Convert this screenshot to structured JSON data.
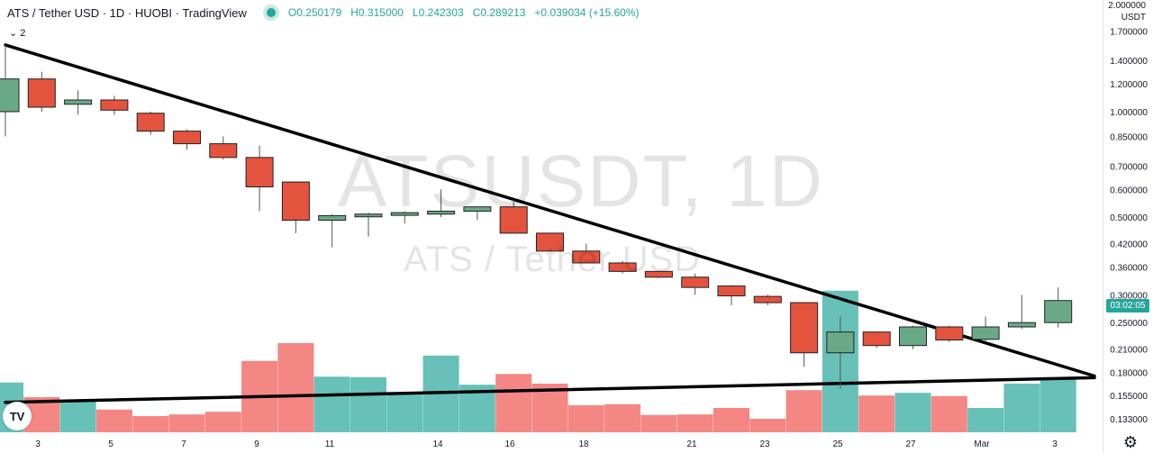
{
  "header": {
    "title": "ATS / Tether USD · 1D · HUOBI · TradingView",
    "open": "O0.250179",
    "high": "H0.315000",
    "low": "L0.242303",
    "close": "C0.289213",
    "change": "+0.039034 (+15.60%)",
    "indicator_count": "2"
  },
  "watermark": {
    "symbol": "ATSUSDT, 1D",
    "name": "ATS / Tether USD"
  },
  "axis": {
    "currency": "USDT",
    "top_label": "2.000000"
  },
  "price_badge": "03:02:05",
  "logo_text": "TV",
  "colors": {
    "up": "#26a69a",
    "down": "#ef5350",
    "up_body": "#6aa987",
    "down_body": "#e4533e",
    "vol_up": "#26a69a",
    "vol_down": "#ef5350",
    "trendline": "#000000"
  },
  "chart_data": {
    "type": "candlestick",
    "scale": "log",
    "ylim": [
      0.125,
      2.0
    ],
    "y_ticks": [
      1.7,
      1.4,
      1.2,
      1.0,
      0.85,
      0.7,
      0.6,
      0.5,
      0.42,
      0.36,
      0.3,
      0.25,
      0.21,
      0.18,
      0.155,
      0.133
    ],
    "x_tick_labels": [
      "3",
      "5",
      "7",
      "9",
      "11",
      "14",
      "16",
      "18",
      "21",
      "23",
      "25",
      "27",
      "Mar",
      "3"
    ],
    "candles": [
      {
        "o": 1.0,
        "h": 1.55,
        "l": 0.85,
        "c": 1.24,
        "v": 0.92
      },
      {
        "o": 1.24,
        "h": 1.3,
        "l": 1.0,
        "c": 1.03,
        "v": 0.65
      },
      {
        "o": 1.05,
        "h": 1.15,
        "l": 0.98,
        "c": 1.08,
        "v": 0.6
      },
      {
        "o": 1.08,
        "h": 1.11,
        "l": 0.98,
        "c": 1.01,
        "v": 0.42
      },
      {
        "o": 0.99,
        "h": 1.0,
        "l": 0.86,
        "c": 0.88,
        "v": 0.3
      },
      {
        "o": 0.88,
        "h": 0.89,
        "l": 0.78,
        "c": 0.81,
        "v": 0.33
      },
      {
        "o": 0.81,
        "h": 0.85,
        "l": 0.73,
        "c": 0.74,
        "v": 0.38
      },
      {
        "o": 0.74,
        "h": 0.8,
        "l": 0.52,
        "c": 0.61,
        "v": 1.32
      },
      {
        "o": 0.63,
        "h": 0.63,
        "l": 0.45,
        "c": 0.49,
        "v": 1.65
      },
      {
        "o": 0.49,
        "h": 0.51,
        "l": 0.41,
        "c": 0.505,
        "v": 1.03
      },
      {
        "o": 0.505,
        "h": 0.515,
        "l": 0.44,
        "c": 0.51,
        "v": 1.02
      },
      {
        "o": 0.51,
        "h": 0.52,
        "l": 0.48,
        "c": 0.515,
        "v": 0.73
      },
      {
        "o": 0.51,
        "h": 0.6,
        "l": 0.5,
        "c": 0.52,
        "v": 1.42
      },
      {
        "o": 0.52,
        "h": 0.535,
        "l": 0.49,
        "c": 0.535,
        "v": 0.88
      },
      {
        "o": 0.535,
        "h": 0.56,
        "l": 0.45,
        "c": 0.45,
        "v": 1.08
      },
      {
        "o": 0.45,
        "h": 0.45,
        "l": 0.4,
        "c": 0.4,
        "v": 0.9
      },
      {
        "o": 0.4,
        "h": 0.42,
        "l": 0.37,
        "c": 0.37,
        "v": 0.5
      },
      {
        "o": 0.37,
        "h": 0.375,
        "l": 0.345,
        "c": 0.35,
        "v": 0.52
      },
      {
        "o": 0.35,
        "h": 0.35,
        "l": 0.335,
        "c": 0.337,
        "v": 0.32
      },
      {
        "o": 0.337,
        "h": 0.345,
        "l": 0.3,
        "c": 0.315,
        "v": 0.33
      },
      {
        "o": 0.318,
        "h": 0.32,
        "l": 0.28,
        "c": 0.298,
        "v": 0.45
      },
      {
        "o": 0.297,
        "h": 0.3,
        "l": 0.28,
        "c": 0.285,
        "v": 0.25
      },
      {
        "o": 0.285,
        "h": 0.285,
        "l": 0.187,
        "c": 0.205,
        "v": 0.78
      },
      {
        "o": 0.205,
        "h": 0.26,
        "l": 0.162,
        "c": 0.235,
        "v": 2.62
      },
      {
        "o": 0.235,
        "h": 0.236,
        "l": 0.212,
        "c": 0.215,
        "v": 0.68
      },
      {
        "o": 0.215,
        "h": 0.245,
        "l": 0.21,
        "c": 0.243,
        "v": 0.73
      },
      {
        "o": 0.243,
        "h": 0.245,
        "l": 0.22,
        "c": 0.223,
        "v": 0.67
      },
      {
        "o": 0.224,
        "h": 0.26,
        "l": 0.22,
        "c": 0.243,
        "v": 0.45
      },
      {
        "o": 0.243,
        "h": 0.3,
        "l": 0.24,
        "c": 0.25,
        "v": 0.9
      },
      {
        "o": 0.25,
        "h": 0.315,
        "l": 0.242,
        "c": 0.289,
        "v": 1.02
      }
    ],
    "trendlines": [
      {
        "from": {
          "bar": 0,
          "price": 1.55
        },
        "to": {
          "bar": 30,
          "price": 0.176
        }
      },
      {
        "from": {
          "bar": 0,
          "price": 0.148
        },
        "to": {
          "bar": 30,
          "price": 0.174
        }
      }
    ]
  }
}
